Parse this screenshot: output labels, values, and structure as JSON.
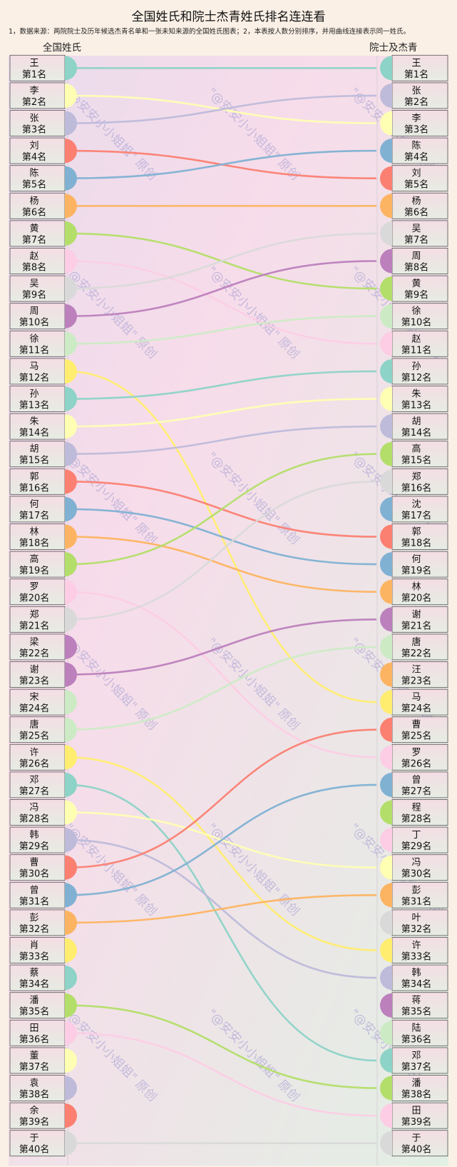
{
  "title": "全国姓氏和院士杰青姓氏排名连连看",
  "note": "1，数据来源：两院院士及历年候选杰青名单和一张未知来源的全国姓氏图表；2，本表按人数分别排序，并用曲线连接表示同一姓氏。",
  "left_header": "全国姓氏",
  "right_header": "院士及杰青",
  "rank_format": "第{n}名",
  "watermark": "\"@安安小小姐姐\" 原创",
  "colors": {
    "王": "#8dd3c7",
    "李": "#ffffb3",
    "张": "#bebada",
    "刘": "#fb8072",
    "陈": "#80b1d3",
    "杨": "#fdb462",
    "黄": "#b3de69",
    "赵": "#fccde5",
    "吴": "#d9d9d9",
    "周": "#bc80bd",
    "徐": "#ccebc5",
    "马": "#ffed6f",
    "孙": "#8dd3c7",
    "朱": "#ffffb3",
    "胡": "#bebada",
    "郭": "#fb8072",
    "何": "#80b1d3",
    "林": "#fdb462",
    "高": "#b3de69",
    "罗": "#fccde5",
    "郑": "#d9d9d9",
    "梁": "#bc80bd",
    "谢": "#bc80bd",
    "宋": "#ccebc5",
    "唐": "#ccebc5",
    "许": "#ffed6f",
    "邓": "#8dd3c7",
    "冯": "#ffffb3",
    "韩": "#bebada",
    "曹": "#fb8072",
    "曾": "#80b1d3",
    "彭": "#fdb462",
    "肖": "#ffed6f",
    "蔡": "#8dd3c7",
    "潘": "#b3de69",
    "田": "#fccde5",
    "董": "#ffffb3",
    "袁": "#bebada",
    "余": "#fb8072",
    "于": "#d9d9d9",
    "沈": "#80b1d3",
    "程": "#b3de69",
    "丁": "#fccde5",
    "汪": "#fdb462",
    "叶": "#d9d9d9",
    "蒋": "#bc80bd",
    "陆": "#ccebc5"
  },
  "chart_data": {
    "type": "diagram",
    "left_surnames": [
      "王",
      "李",
      "张",
      "刘",
      "陈",
      "杨",
      "黄",
      "赵",
      "吴",
      "周",
      "徐",
      "马",
      "孙",
      "朱",
      "胡",
      "郭",
      "何",
      "林",
      "高",
      "罗",
      "郑",
      "梁",
      "谢",
      "宋",
      "唐",
      "许",
      "邓",
      "冯",
      "韩",
      "曹",
      "曾",
      "彭",
      "肖",
      "蔡",
      "潘",
      "田",
      "董",
      "袁",
      "余",
      "于"
    ],
    "right_surnames": [
      "王",
      "张",
      "李",
      "陈",
      "刘",
      "杨",
      "吴",
      "周",
      "黄",
      "徐",
      "赵",
      "孙",
      "朱",
      "胡",
      "高",
      "郑",
      "沈",
      "郭",
      "何",
      "林",
      "谢",
      "唐",
      "汪",
      "马",
      "曹",
      "罗",
      "曾",
      "程",
      "丁",
      "冯",
      "彭",
      "叶",
      "许",
      "韩",
      "蒋",
      "陆",
      "邓",
      "潘",
      "田",
      "于"
    ]
  }
}
